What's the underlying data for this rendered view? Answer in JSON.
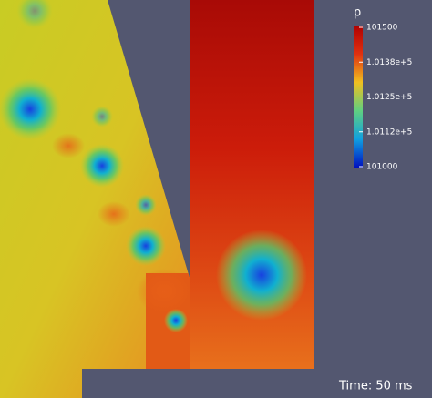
{
  "colorbar": {
    "title": "p",
    "labels": [
      "101500",
      "1.0138e+5",
      "1.0125e+5",
      "1.0112e+5",
      "101000"
    ]
  },
  "annotation": "Time: 50 ms"
}
